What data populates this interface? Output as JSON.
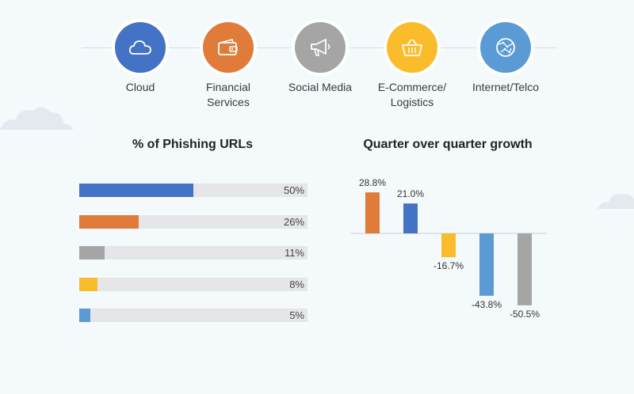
{
  "categories": [
    {
      "label": "Cloud",
      "icon": "cloud-icon",
      "color": "#4472c4"
    },
    {
      "label": "Financial\nServices",
      "icon": "wallet-icon",
      "color": "#e07b39"
    },
    {
      "label": "Social Media",
      "icon": "megaphone-icon",
      "color": "#a5a5a5"
    },
    {
      "label": "E-Commerce/\nLogistics",
      "icon": "basket-icon",
      "color": "#fbbc2c"
    },
    {
      "label": "Internet/Telco",
      "icon": "globe-icon",
      "color": "#5b9bd5"
    }
  ],
  "chart_data": [
    {
      "type": "bar",
      "orientation": "horizontal",
      "title": "% of Phishing URLs",
      "categories": [
        "Cloud",
        "Financial Services",
        "Social Media",
        "E-Commerce/Logistics",
        "Internet/Telco"
      ],
      "values": [
        50,
        26,
        11,
        8,
        5
      ],
      "value_labels": [
        "50%",
        "26%",
        "11%",
        "8%",
        "5%"
      ],
      "colors": [
        "#4472c4",
        "#e07b39",
        "#a5a5a5",
        "#fbbc2c",
        "#5b9bd5"
      ],
      "xlim": [
        0,
        100
      ]
    },
    {
      "type": "bar",
      "title": "Quarter over quarter growth",
      "categories": [
        "Financial Services",
        "Cloud",
        "E-Commerce/Logistics",
        "Internet/Telco",
        "Social Media"
      ],
      "values": [
        28.8,
        21.0,
        -16.7,
        -43.8,
        -50.5
      ],
      "value_labels": [
        "28.8%",
        "21.0%",
        "-16.7%",
        "-43.8%",
        "-50.5%"
      ],
      "colors": [
        "#e07b39",
        "#4472c4",
        "#fbbc2c",
        "#5b9bd5",
        "#a5a5a5"
      ],
      "ylim": [
        -55,
        30
      ]
    }
  ]
}
